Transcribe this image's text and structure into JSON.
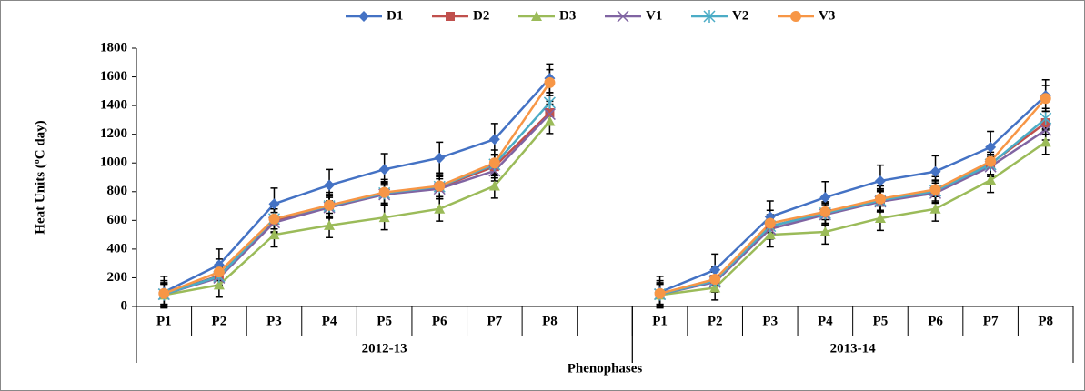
{
  "chart_data": {
    "type": "line",
    "y_label": "Heat Units (ºC day)",
    "x_label": "Phenophases",
    "categories": [
      "P1",
      "P2",
      "P3",
      "P4",
      "P5",
      "P6",
      "P7",
      "P8",
      null,
      "P1",
      "P2",
      "P3",
      "P4",
      "P5",
      "P6",
      "P7",
      "P8"
    ],
    "groups": [
      {
        "name": "2012-13",
        "span": 9
      },
      {
        "name": "2013-14",
        "span": 8
      }
    ],
    "ylim": [
      0,
      1800
    ],
    "yticks": [
      0,
      200,
      400,
      600,
      800,
      1000,
      1200,
      1400,
      1600,
      1800
    ],
    "legend": "top",
    "series": [
      {
        "name": "D1",
        "color": "#4472c4",
        "marker": "diamond",
        "values": [
          100,
          290,
          715,
          845,
          955,
          1035,
          1165,
          1590,
          null,
          100,
          255,
          625,
          760,
          875,
          940,
          1110,
          1470
        ],
        "errors": [
          110,
          110,
          110,
          110,
          110,
          110,
          110,
          100,
          null,
          110,
          110,
          110,
          110,
          110,
          110,
          110,
          110
        ]
      },
      {
        "name": "D2",
        "color": "#c0504d",
        "marker": "square",
        "values": [
          85,
          215,
          600,
          700,
          790,
          830,
          975,
          1350,
          null,
          85,
          190,
          560,
          650,
          740,
          800,
          995,
          1280
        ],
        "errors": [
          80,
          80,
          80,
          80,
          80,
          80,
          80,
          80,
          null,
          80,
          80,
          80,
          80,
          80,
          80,
          80,
          80
        ]
      },
      {
        "name": "D3",
        "color": "#9bbb59",
        "marker": "triangle",
        "values": [
          80,
          150,
          500,
          565,
          620,
          680,
          840,
          1290,
          null,
          80,
          130,
          500,
          520,
          615,
          680,
          880,
          1145
        ],
        "errors": [
          85,
          85,
          85,
          85,
          85,
          85,
          85,
          85,
          null,
          85,
          85,
          85,
          85,
          85,
          85,
          85,
          85
        ]
      },
      {
        "name": "V1",
        "color": "#8064a2",
        "marker": "x",
        "values": [
          85,
          200,
          585,
          690,
          780,
          820,
          945,
          1340,
          null,
          85,
          170,
          540,
          640,
          730,
          790,
          975,
          1230
        ],
        "errors": [
          70,
          70,
          70,
          70,
          70,
          70,
          70,
          70,
          null,
          70,
          70,
          70,
          70,
          70,
          70,
          70,
          70
        ]
      },
      {
        "name": "V2",
        "color": "#4bacc6",
        "marker": "star",
        "values": [
          85,
          210,
          610,
          700,
          790,
          835,
          990,
          1420,
          null,
          85,
          180,
          560,
          650,
          740,
          805,
          990,
          1310
        ],
        "errors": [
          70,
          70,
          70,
          70,
          70,
          70,
          70,
          70,
          null,
          70,
          70,
          70,
          70,
          70,
          70,
          70,
          70
        ]
      },
      {
        "name": "V3",
        "color": "#f79646",
        "marker": "circle",
        "values": [
          90,
          240,
          610,
          705,
          795,
          840,
          1000,
          1560,
          null,
          90,
          190,
          580,
          660,
          750,
          815,
          1010,
          1450
        ],
        "errors": [
          90,
          90,
          90,
          90,
          90,
          90,
          90,
          90,
          null,
          90,
          90,
          90,
          90,
          90,
          90,
          90,
          90
        ]
      }
    ]
  }
}
